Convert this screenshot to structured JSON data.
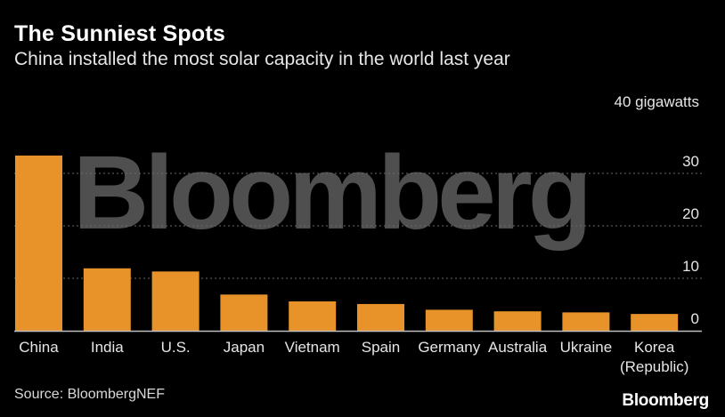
{
  "chart_data": {
    "type": "bar",
    "title": "The Sunniest Spots",
    "subtitle": "China installed the most solar capacity in the world last year",
    "unit_label": "40 gigawatts",
    "categories": [
      "China",
      "India",
      "U.S.",
      "Japan",
      "Vietnam",
      "Spain",
      "Germany",
      "Australia",
      "Ukraine",
      "Korea (Republic)"
    ],
    "category_lines": [
      [
        "China"
      ],
      [
        "India"
      ],
      [
        "U.S."
      ],
      [
        "Japan"
      ],
      [
        "Vietnam"
      ],
      [
        "Spain"
      ],
      [
        "Germany"
      ],
      [
        "Australia"
      ],
      [
        "Ukraine"
      ],
      [
        "Korea",
        "(Republic)"
      ]
    ],
    "values": [
      33.4,
      11.9,
      11.3,
      6.9,
      5.6,
      5.1,
      4.0,
      3.7,
      3.5,
      3.2
    ],
    "ylim": [
      0,
      40
    ],
    "yticks": [
      0,
      10,
      20,
      30
    ],
    "ytick_labels": [
      "0",
      "10",
      "20",
      "30"
    ],
    "grid": true,
    "bar_color": "#e8922a",
    "xlabel": "",
    "ylabel": ""
  },
  "watermark": "Bloomberg",
  "footer": {
    "source": "Source: BloombergNEF",
    "logo": "Bloomberg"
  },
  "colors": {
    "background": "#000000",
    "gridline": "#6a6a6a",
    "text": "#ffffff"
  }
}
